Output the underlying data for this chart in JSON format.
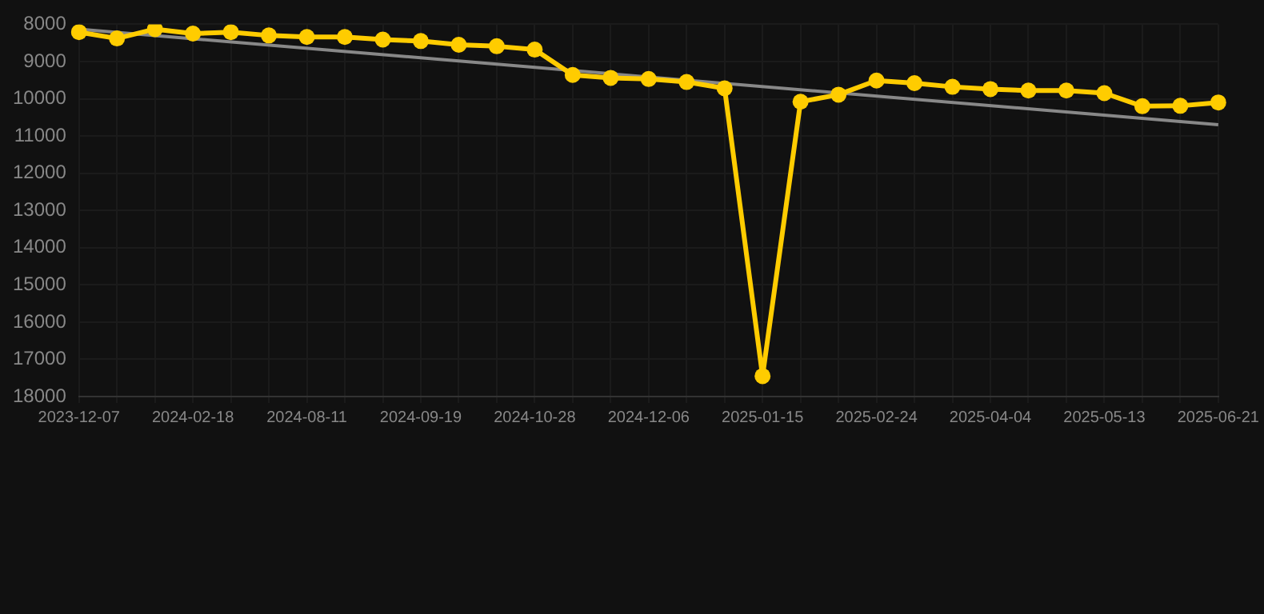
{
  "chart_data": {
    "type": "line",
    "categories": [
      "2023-12-07",
      null,
      null,
      "2024-02-18",
      null,
      null,
      "2024-08-11",
      null,
      null,
      "2024-09-19",
      null,
      null,
      "2024-10-28",
      null,
      null,
      "2024-12-06",
      null,
      null,
      "2025-01-15",
      null,
      null,
      "2025-02-24",
      null,
      null,
      "2025-04-04",
      null,
      null,
      "2025-05-13",
      null,
      null,
      "2025-06-21"
    ],
    "series": [
      {
        "color": "#ffcc00",
        "marker": "circle",
        "values": [
          8210,
          8380,
          8130,
          8250,
          8210,
          8300,
          8340,
          8340,
          8410,
          8450,
          8550,
          8590,
          8680,
          9360,
          9440,
          9470,
          9550,
          9720,
          17450,
          10080,
          9890,
          9510,
          9580,
          9680,
          9740,
          9780,
          9780,
          9850,
          10200,
          10190,
          10100
        ]
      },
      {
        "color": "#888888",
        "marker": "none",
        "values": [
          8130,
          null,
          null,
          null,
          null,
          null,
          null,
          null,
          null,
          null,
          null,
          null,
          null,
          null,
          null,
          null,
          null,
          null,
          null,
          null,
          null,
          null,
          null,
          null,
          null,
          null,
          null,
          null,
          null,
          null,
          10700
        ]
      }
    ],
    "ylim": [
      18000,
      8000
    ],
    "yticks": [
      8000,
      9000,
      10000,
      11000,
      12000,
      13000,
      14000,
      15000,
      16000,
      17000,
      18000
    ],
    "grid": true,
    "legend": false
  }
}
